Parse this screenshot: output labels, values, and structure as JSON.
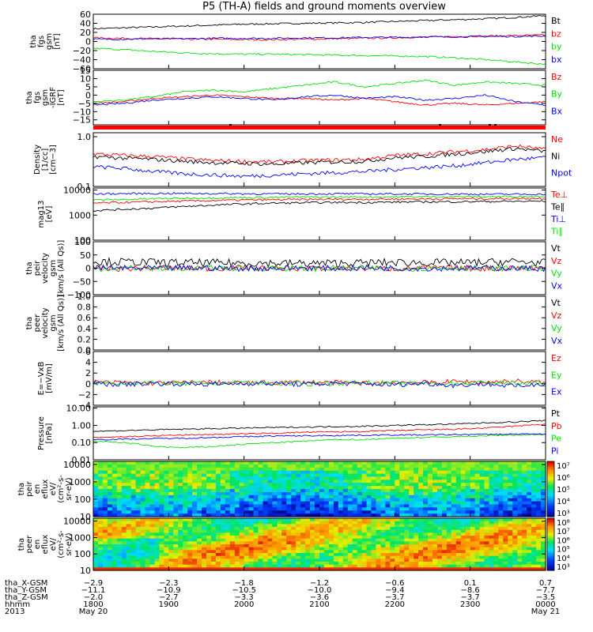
{
  "title": "P5 (TH-A) fields and ground moments overview",
  "chart_data": [
    {
      "type": "line",
      "ylabel": [
        "tha",
        "fgs",
        "gsm",
        "[nT]"
      ],
      "ylim": [
        -60,
        60
      ],
      "yscale": "linear",
      "yticks": [
        60,
        40,
        20,
        0,
        -20,
        -40,
        -60
      ],
      "ytick_labels": [
        "60",
        "40",
        "20",
        "0",
        "−20",
        "−40",
        "−60"
      ],
      "series": [
        {
          "name": "Bt",
          "color": "#000000",
          "values": [
            28,
            30,
            32,
            34,
            36,
            38,
            39,
            40,
            41,
            42,
            44,
            46,
            48,
            50,
            53,
            57
          ]
        },
        {
          "name": "bz",
          "color": "#ff0000",
          "values": [
            8,
            7,
            6,
            5,
            5,
            4,
            4,
            5,
            6,
            7,
            8,
            10,
            11,
            12,
            13,
            14
          ]
        },
        {
          "name": "by",
          "color": "#00e000",
          "values": [
            -15,
            -18,
            -22,
            -25,
            -27,
            -28,
            -28,
            -29,
            -30,
            -31,
            -32,
            -33,
            -36,
            -40,
            -45,
            -50
          ]
        },
        {
          "name": "bx",
          "color": "#0000ff",
          "values": [
            5,
            5,
            6,
            6,
            7,
            7,
            7,
            8,
            8,
            9,
            9,
            10,
            10,
            11,
            11,
            12
          ]
        }
      ]
    },
    {
      "type": "line",
      "ylabel": [
        "tha",
        "fgs",
        "gsm",
        "-IGRF",
        "[nT]"
      ],
      "ylim": [
        -18,
        15
      ],
      "yscale": "linear",
      "yticks": [
        15,
        10,
        5,
        0,
        -5,
        -10,
        -15
      ],
      "ytick_labels": [
        "15",
        "10",
        "5",
        "0",
        "−5",
        "−10",
        "−15"
      ],
      "series": [
        {
          "name": "Bz",
          "color": "#ff0000",
          "values": [
            -5,
            -4,
            -2,
            -1,
            0,
            -1,
            -2,
            -2,
            -3,
            -2,
            -4,
            -6,
            -5,
            -6,
            -5,
            -4
          ]
        },
        {
          "name": "By",
          "color": "#00e000",
          "values": [
            -4,
            -3,
            -1,
            2,
            3,
            2,
            4,
            6,
            8,
            5,
            7,
            9,
            6,
            8,
            7,
            6
          ]
        },
        {
          "name": "Bx",
          "color": "#0000ff",
          "values": [
            -6,
            -5,
            -3,
            -2,
            -1,
            -2,
            -3,
            -1,
            0,
            -2,
            -1,
            -3,
            -2,
            0,
            -4,
            -6
          ]
        }
      ]
    },
    {
      "type": "line",
      "ylabel": [
        "Density",
        "[1/cc]",
        "[cm−3]"
      ],
      "ylim": [
        0.1,
        1.2
      ],
      "yscale": "log",
      "yticks": [
        1.0,
        0.1
      ],
      "ytick_labels": [
        "1.0",
        "0.1"
      ],
      "series": [
        {
          "name": "Ne",
          "color": "#ff0000",
          "values": [
            0.45,
            0.42,
            0.4,
            0.36,
            0.33,
            0.32,
            0.31,
            0.33,
            0.34,
            0.35,
            0.42,
            0.45,
            0.5,
            0.55,
            0.65,
            0.55
          ]
        },
        {
          "name": "Ni",
          "color": "#000000",
          "values": [
            0.4,
            0.37,
            0.35,
            0.32,
            0.3,
            0.29,
            0.28,
            0.3,
            0.31,
            0.32,
            0.38,
            0.4,
            0.45,
            0.5,
            0.58,
            0.5
          ]
        },
        {
          "name": "Npot",
          "color": "#0000ff",
          "values": [
            0.25,
            0.23,
            0.2,
            0.18,
            0.17,
            0.16,
            0.17,
            0.18,
            0.19,
            0.2,
            0.22,
            0.24,
            0.26,
            0.3,
            0.35,
            0.38
          ]
        }
      ]
    },
    {
      "type": "line",
      "ylabel": [
        "mag13",
        "[eV]"
      ],
      "ylim": [
        100,
        12000
      ],
      "yscale": "log",
      "yticks": [
        10000,
        1000,
        100
      ],
      "ytick_labels": [
        "10000",
        "1000",
        "100"
      ],
      "series": [
        {
          "name": "Te⊥",
          "color": "#ff0000",
          "values": [
            3000,
            3200,
            3400,
            3600,
            3800,
            4000,
            4100,
            4200,
            4300,
            4300,
            4400,
            4400,
            4500,
            4500,
            4600,
            4600
          ]
        },
        {
          "name": "Te∥",
          "color": "#000000",
          "values": [
            1500,
            1700,
            1900,
            2200,
            2500,
            2800,
            3000,
            3100,
            3200,
            3200,
            3300,
            3400,
            3400,
            3500,
            3500,
            3600
          ]
        },
        {
          "name": "Ti⊥",
          "color": "#0000ff",
          "values": [
            7000,
            7200,
            7300,
            7300,
            7200,
            7100,
            7000,
            7000,
            7100,
            7000,
            7000,
            6900,
            6900,
            6800,
            6800,
            6800
          ]
        },
        {
          "name": "Ti∥",
          "color": "#00e000",
          "values": [
            4000,
            4200,
            4500,
            4700,
            4900,
            5000,
            5100,
            5200,
            5200,
            5300,
            5300,
            5400,
            5400,
            5400,
            5500,
            5500
          ]
        }
      ]
    },
    {
      "type": "line",
      "ylabel": [
        "tha",
        "peir",
        "velocity",
        "gsm",
        "[km/s (All Qs)]"
      ],
      "ylim": [
        -100,
        100
      ],
      "yscale": "linear",
      "yticks": [
        100,
        50,
        0,
        -50,
        -100
      ],
      "ytick_labels": [
        "100",
        "50",
        "0",
        "−50",
        "−100"
      ],
      "series": [
        {
          "name": "Vt",
          "color": "#000000",
          "values": [
            25,
            24,
            22,
            21,
            20,
            20,
            19,
            18,
            19,
            20,
            22,
            21,
            20,
            22,
            25,
            20
          ]
        },
        {
          "name": "Vz",
          "color": "#ff0000",
          "values": [
            0,
            -2,
            1,
            0,
            -1,
            2,
            0,
            -1,
            1,
            0,
            -2,
            1,
            0,
            -1,
            2,
            0
          ]
        },
        {
          "name": "Vy",
          "color": "#00e000",
          "values": [
            -2,
            1,
            0,
            -1,
            2,
            0,
            1,
            -2,
            0,
            1,
            -1,
            0,
            2,
            -1,
            0,
            1
          ]
        },
        {
          "name": "Vx",
          "color": "#0000ff",
          "values": [
            1,
            0,
            -1,
            1,
            0,
            -1,
            0,
            1,
            -1,
            0,
            1,
            -1,
            0,
            1,
            0,
            -1
          ]
        }
      ]
    },
    {
      "type": "line",
      "ylabel": [
        "tha",
        "peer",
        "velocity",
        "gsm",
        "[km/s (All Qs)]"
      ],
      "ylim": [
        0,
        1
      ],
      "yscale": "linear",
      "yticks": [
        1.0,
        0.8,
        0.6,
        0.4,
        0.2,
        0.0
      ],
      "ytick_labels": [
        "1.0",
        "0.8",
        "0.6",
        "0.4",
        "0.2",
        "0.0"
      ],
      "series": [
        {
          "name": "Vt",
          "color": "#000000",
          "values": []
        },
        {
          "name": "Vz",
          "color": "#ff0000",
          "values": []
        },
        {
          "name": "Vy",
          "color": "#00e000",
          "values": []
        },
        {
          "name": "Vx",
          "color": "#0000ff",
          "values": []
        }
      ]
    },
    {
      "type": "line",
      "ylabel": [
        "E=−VxB",
        "[mV/m]"
      ],
      "ylim": [
        -4,
        6
      ],
      "yscale": "linear",
      "yticks": [
        6,
        4,
        2,
        0,
        -2,
        -4
      ],
      "ytick_labels": [
        "6",
        "4",
        "2",
        "0",
        "−2",
        "−4"
      ],
      "series": [
        {
          "name": "Ez",
          "color": "#ff0000",
          "values": [
            0.3,
            0.2,
            0.1,
            0.2,
            0.3,
            0.1,
            0.2,
            0.3,
            0.2,
            0.1,
            0.3,
            0.2,
            0.4,
            0.3,
            0.5,
            0.2
          ]
        },
        {
          "name": "Ey",
          "color": "#00e000",
          "values": [
            0.1,
            0.2,
            0.1,
            0.0,
            0.1,
            0.2,
            0.1,
            0.0,
            0.1,
            0.2,
            0.1,
            0.0,
            0.1,
            0.2,
            0.1,
            0.0
          ]
        },
        {
          "name": "Ex",
          "color": "#0000ff",
          "values": [
            0.0,
            -0.1,
            0.1,
            0.0,
            -0.1,
            0.1,
            0.0,
            -0.1,
            0.1,
            0.0,
            -0.2,
            0.1,
            -0.3,
            0.0,
            -0.5,
            0.1
          ]
        }
      ]
    },
    {
      "type": "line",
      "ylabel": [
        "Pressure",
        "[nPa]"
      ],
      "ylim": [
        0.01,
        12
      ],
      "yscale": "log",
      "yticks": [
        10.0,
        1.0,
        0.1,
        0.01
      ],
      "ytick_labels": [
        "10.00",
        "1.00",
        "0.10",
        "0.01"
      ],
      "series": [
        {
          "name": "Pt",
          "color": "#000000",
          "values": [
            0.45,
            0.5,
            0.55,
            0.6,
            0.65,
            0.7,
            0.75,
            0.8,
            0.85,
            0.9,
            1.0,
            1.1,
            1.2,
            1.4,
            1.6,
            1.9
          ]
        },
        {
          "name": "Pb",
          "color": "#ff0000",
          "values": [
            0.2,
            0.22,
            0.25,
            0.28,
            0.3,
            0.32,
            0.35,
            0.4,
            0.42,
            0.45,
            0.5,
            0.55,
            0.6,
            0.7,
            0.9,
            1.2
          ]
        },
        {
          "name": "Pe",
          "color": "#00e000",
          "values": [
            0.12,
            0.1,
            0.06,
            0.05,
            0.06,
            0.08,
            0.1,
            0.12,
            0.15,
            0.15,
            0.18,
            0.2,
            0.22,
            0.25,
            0.28,
            0.3
          ]
        },
        {
          "name": "Pi",
          "color": "#0000ff",
          "values": [
            0.15,
            0.16,
            0.17,
            0.18,
            0.2,
            0.22,
            0.24,
            0.25,
            0.26,
            0.27,
            0.28,
            0.28,
            0.29,
            0.3,
            0.31,
            0.32
          ]
        }
      ]
    },
    {
      "type": "heatmap",
      "ylabel": [
        "tha",
        "peir",
        "en",
        "eflux",
        "eV/",
        "(cm²-s-",
        "sr-eV)"
      ],
      "ylim": [
        10,
        15000
      ],
      "yscale": "log",
      "yticks": [
        10000,
        1000,
        100,
        10
      ],
      "ytick_labels": [
        "10000",
        "1000",
        "100",
        "10"
      ],
      "colorbar": {
        "min_exp": 3,
        "max_exp": 7,
        "labels": [
          "10⁷",
          "10⁶",
          "10⁵",
          "10⁴",
          "10³"
        ]
      }
    },
    {
      "type": "heatmap",
      "ylabel": [
        "tha",
        "peer",
        "en",
        "eflux",
        "eV/",
        "(cm²-s-",
        "sr-eV)"
      ],
      "ylim": [
        10,
        15000
      ],
      "yscale": "log",
      "yticks": [
        10000,
        1000,
        100,
        10
      ],
      "ytick_labels": [
        "10000",
        "1000",
        "100",
        "10"
      ],
      "colorbar": {
        "min_exp": 3,
        "max_exp": 8,
        "labels": [
          "10⁸",
          "10⁷",
          "10⁶",
          "10⁵",
          "10⁴",
          "10³"
        ]
      }
    }
  ],
  "x_axis": {
    "row_labels": [
      "tha_X-GSM",
      "tha_Y-GSM",
      "tha_Z-GSM",
      "hhmm",
      "2013"
    ],
    "columns": [
      [
        "−2.9",
        "−11.1",
        "−2.0",
        "1800",
        "May 20"
      ],
      [
        "−2.3",
        "−10.9",
        "−2.7",
        "1900",
        ""
      ],
      [
        "−1.8",
        "−10.5",
        "−3.3",
        "2000",
        ""
      ],
      [
        "−1.2",
        "−10.0",
        "−3.6",
        "2100",
        ""
      ],
      [
        "−0.6",
        "−9.4",
        "−3.7",
        "2200",
        ""
      ],
      [
        "0.1",
        "−8.6",
        "−3.7",
        "2300",
        ""
      ],
      [
        "0.7",
        "−7.7",
        "−3.5",
        "0000",
        "May 21"
      ]
    ]
  }
}
